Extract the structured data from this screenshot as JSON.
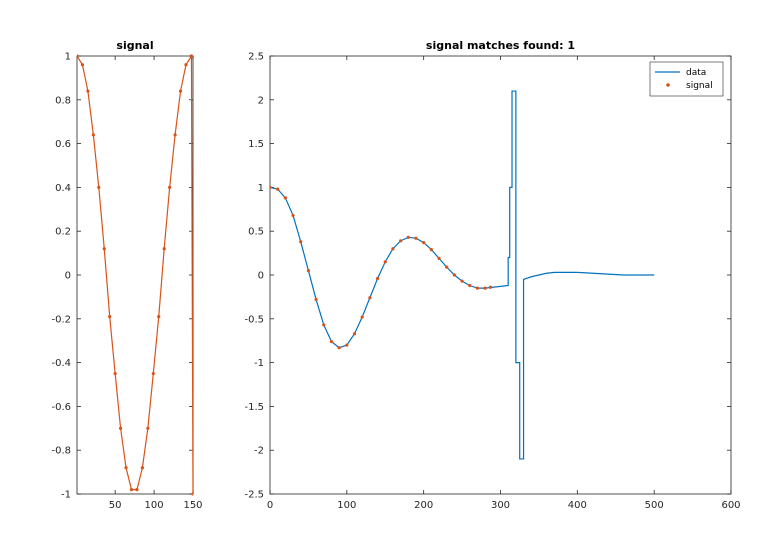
{
  "colors": {
    "data": "#0072BD",
    "signal": "#D95319"
  },
  "chart_data": [
    {
      "type": "line",
      "title": "signal",
      "xlabel": "",
      "ylabel": "",
      "xlim": [
        1,
        150
      ],
      "ylim": [
        -1,
        1
      ],
      "xticks": [
        50,
        100,
        150
      ],
      "xtick_labels": [
        "50",
        "100",
        "150"
      ],
      "yticks": [
        -1,
        -0.8,
        -0.6,
        -0.4,
        -0.2,
        0,
        0.2,
        0.4,
        0.6,
        0.8,
        1
      ],
      "ytick_labels": [
        "-1",
        "-0.8",
        "-0.6",
        "-0.4",
        "-0.2",
        "0",
        "0.2",
        "0.4",
        "0.6",
        "0.8",
        "1"
      ],
      "grid": false,
      "series": [
        {
          "name": "",
          "style": "line+dots",
          "color_key": "signal",
          "x": [
            1,
            8,
            15,
            22,
            29,
            36,
            43,
            50,
            57,
            64,
            71,
            78,
            85,
            92,
            99,
            106,
            113,
            120,
            127,
            134,
            141,
            148,
            150
          ],
          "y": [
            1,
            0.96,
            0.84,
            0.64,
            0.4,
            0.12,
            -0.19,
            -0.45,
            -0.7,
            -0.88,
            -0.98,
            -0.98,
            -0.88,
            -0.7,
            -0.45,
            -0.19,
            0.12,
            0.4,
            0.64,
            0.84,
            0.96,
            1,
            -1
          ]
        }
      ]
    },
    {
      "type": "line",
      "title": "signal matches found: 1",
      "xlabel": "",
      "ylabel": "",
      "xlim": [
        0,
        600
      ],
      "ylim": [
        -2.5,
        2.5
      ],
      "xticks": [
        0,
        100,
        200,
        300,
        400,
        500,
        600
      ],
      "xtick_labels": [
        "0",
        "100",
        "200",
        "300",
        "400",
        "500",
        "600"
      ],
      "yticks": [
        -2.5,
        -2,
        -1.5,
        -1,
        -0.5,
        0,
        0.5,
        1,
        1.5,
        2,
        2.5
      ],
      "ytick_labels": [
        "-2.5",
        "-2",
        "-1.5",
        "-1",
        "-0.5",
        "0",
        "0.5",
        "1",
        "1.5",
        "2",
        "2.5"
      ],
      "grid": false,
      "legend": {
        "position": "top-right",
        "entries": [
          "data",
          "signal"
        ]
      },
      "series": [
        {
          "name": "data",
          "style": "line",
          "color_key": "data",
          "x": [
            0,
            10,
            20,
            30,
            40,
            50,
            60,
            70,
            80,
            90,
            100,
            110,
            120,
            130,
            140,
            150,
            160,
            170,
            180,
            190,
            200,
            210,
            220,
            230,
            240,
            250,
            260,
            270,
            280,
            290,
            300,
            310,
            310,
            312,
            312,
            315,
            315,
            320,
            320,
            325,
            325,
            330,
            330,
            340,
            350,
            360,
            370,
            380,
            400,
            420,
            440,
            460,
            480,
            500
          ],
          "y": [
            1.0,
            0.98,
            0.88,
            0.68,
            0.38,
            0.05,
            -0.28,
            -0.57,
            -0.76,
            -0.83,
            -0.8,
            -0.67,
            -0.48,
            -0.26,
            -0.04,
            0.15,
            0.3,
            0.39,
            0.43,
            0.42,
            0.37,
            0.29,
            0.19,
            0.09,
            0.0,
            -0.07,
            -0.12,
            -0.15,
            -0.15,
            -0.14,
            -0.13,
            -0.12,
            0.2,
            0.2,
            1.0,
            1.0,
            2.1,
            2.1,
            -1.0,
            -1.0,
            -2.1,
            -2.1,
            -0.05,
            -0.02,
            0.0,
            0.02,
            0.03,
            0.03,
            0.03,
            0.02,
            0.01,
            0.0,
            0.0,
            0.0
          ]
        },
        {
          "name": "signal",
          "style": "dots",
          "color_key": "signal",
          "x": [
            0,
            10,
            20,
            30,
            40,
            50,
            60,
            70,
            80,
            90,
            100,
            110,
            120,
            130,
            140,
            150,
            160,
            170,
            180,
            190,
            200,
            210,
            220,
            230,
            240,
            250,
            260,
            270,
            280,
            287
          ],
          "y": [
            1.0,
            0.98,
            0.88,
            0.68,
            0.38,
            0.05,
            -0.28,
            -0.57,
            -0.76,
            -0.83,
            -0.8,
            -0.67,
            -0.48,
            -0.26,
            -0.04,
            0.15,
            0.3,
            0.39,
            0.43,
            0.42,
            0.37,
            0.29,
            0.19,
            0.09,
            0.0,
            -0.07,
            -0.12,
            -0.15,
            -0.15,
            -0.14
          ]
        }
      ]
    }
  ]
}
